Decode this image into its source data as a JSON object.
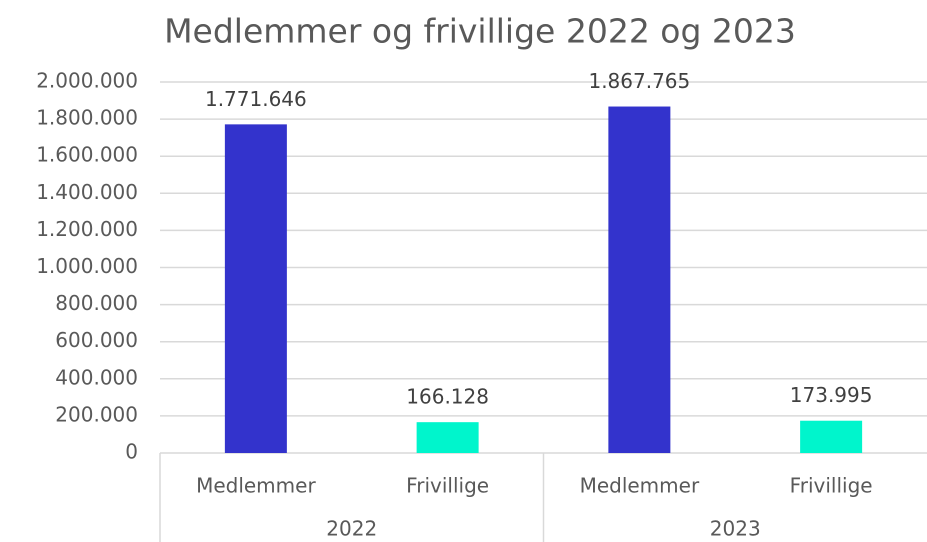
{
  "chart_data": {
    "type": "bar",
    "title": "Medlemmer og frivillige 2022 og 2023",
    "groups": [
      "2022",
      "2023"
    ],
    "categories": [
      "Medlemmer",
      "Frivillige",
      "Medlemmer",
      "Frivillige"
    ],
    "values": [
      1771646,
      166128,
      1867765,
      173995
    ],
    "value_labels": [
      "1.771.646",
      "166.128",
      "1.867.765",
      "173.995"
    ],
    "colors": [
      "#3333cc",
      "#00f5cc",
      "#3333cc",
      "#00f5cc"
    ],
    "ylim": [
      0,
      2000000
    ],
    "yticks": [
      0,
      {
        "value": 200000,
        "label": "200.000"
      },
      {
        "value": 400000,
        "label": "400.000"
      },
      {
        "value": 600000,
        "label": "600.000"
      },
      {
        "value": 800000,
        "label": "800.000"
      },
      {
        "value": 1000000,
        "label": "1.000.000"
      },
      {
        "value": 1200000,
        "label": "1.200.000"
      },
      {
        "value": 1400000,
        "label": "1.400.000"
      },
      {
        "value": 1600000,
        "label": "1.600.000"
      },
      {
        "value": 1800000,
        "label": "1.800.000"
      },
      {
        "value": 2000000,
        "label": "2.000.000"
      }
    ],
    "grid": true
  }
}
